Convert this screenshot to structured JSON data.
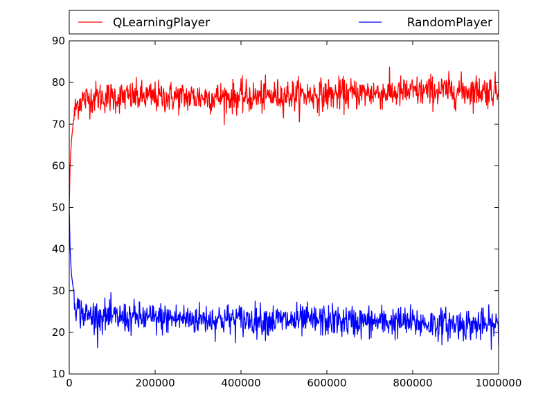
{
  "chart_data": {
    "type": "line",
    "title": "",
    "xlabel": "",
    "ylabel": "",
    "xlim": [
      0,
      1000000
    ],
    "ylim": [
      10,
      90
    ],
    "x_ticks": [
      0,
      200000,
      400000,
      600000,
      800000,
      1000000
    ],
    "y_ticks": [
      10,
      20,
      30,
      40,
      50,
      60,
      70,
      80,
      90
    ],
    "x_tick_labels": [
      "0",
      "200000",
      "400000",
      "600000",
      "800000",
      "1000000"
    ],
    "y_tick_labels": [
      "10",
      "20",
      "30",
      "40",
      "50",
      "60",
      "70",
      "80",
      "90"
    ],
    "grid": false,
    "legend": {
      "placement": "top, above plot, two columns",
      "entries": [
        "QLearningPlayer",
        "RandomPlayer"
      ]
    },
    "series": [
      {
        "name": "QLearningPlayer",
        "color": "#ff0000",
        "x": [
          0,
          2000,
          5000,
          10000,
          15000,
          20000,
          30000,
          40000,
          60000,
          80000,
          100000,
          150000,
          200000,
          250000,
          300000,
          350000,
          400000,
          450000,
          500000,
          550000,
          600000,
          650000,
          700000,
          750000,
          800000,
          850000,
          900000,
          950000,
          1000000
        ],
        "y": [
          50,
          60,
          66,
          71,
          74,
          75,
          76,
          76,
          76.5,
          76.5,
          76.5,
          76.5,
          76.5,
          76.5,
          76.5,
          76.5,
          76.5,
          76.5,
          77,
          77,
          77,
          77.2,
          77.5,
          77.5,
          77.7,
          78,
          78,
          78,
          78
        ]
      },
      {
        "name": "RandomPlayer",
        "color": "#0000ff",
        "x": [
          0,
          2000,
          5000,
          10000,
          15000,
          20000,
          30000,
          40000,
          60000,
          80000,
          100000,
          150000,
          200000,
          250000,
          300000,
          350000,
          400000,
          450000,
          500000,
          550000,
          600000,
          650000,
          700000,
          750000,
          800000,
          850000,
          900000,
          950000,
          1000000
        ],
        "y": [
          50,
          40,
          34,
          30,
          27,
          25.5,
          24.5,
          24,
          24,
          23.8,
          23.5,
          23.5,
          23.3,
          23.3,
          23.2,
          23.2,
          23,
          23,
          22.8,
          22.8,
          22.8,
          22.6,
          22.5,
          22.5,
          22.3,
          22,
          22,
          21.8,
          21.5
        ]
      }
    ]
  }
}
